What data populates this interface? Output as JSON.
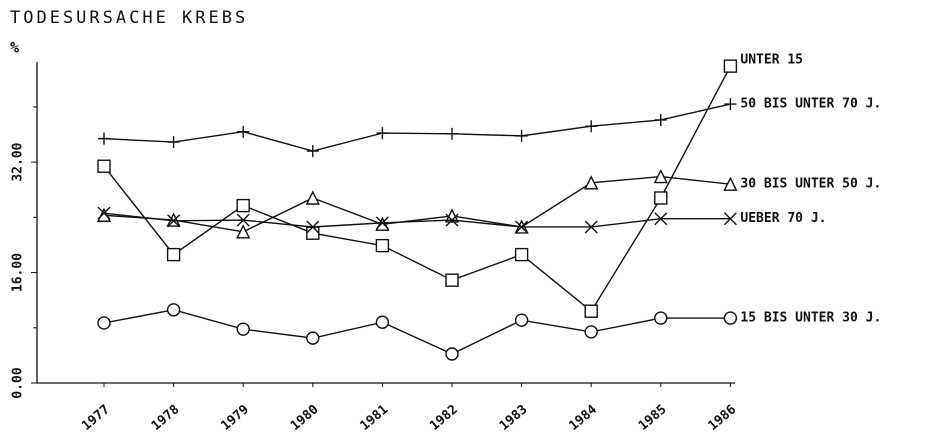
{
  "chart_data": {
    "type": "line",
    "title": "TODESURSACHE KREBS",
    "y_label": "%",
    "categories": [
      "1977",
      "1978",
      "1979",
      "1980",
      "1981",
      "1982",
      "1983",
      "1984",
      "1985",
      "1986"
    ],
    "ylim": [
      0,
      46.5
    ],
    "yticks": [
      {
        "value": 0,
        "label": "0.00"
      },
      {
        "value": 16,
        "label": "16.00"
      },
      {
        "value": 32,
        "label": "32.00"
      }
    ],
    "yticks_minor": [
      8,
      24,
      40
    ],
    "series": [
      {
        "name": "UNTER 15",
        "marker": "square",
        "color": "#111",
        "values": [
          31.4,
          18.6,
          25.7,
          21.7,
          19.9,
          14.9,
          18.6,
          10.4,
          26.8,
          45.9
        ]
      },
      {
        "name": "50 BIS UNTER 70 J.",
        "marker": "plus",
        "color": "#111",
        "values": [
          35.4,
          34.9,
          36.4,
          33.6,
          36.2,
          36.1,
          35.8,
          37.2,
          38.1,
          40.4
        ]
      },
      {
        "name": "30 BIS UNTER 50 J.",
        "marker": "triangle",
        "color": "#111",
        "values": [
          24.3,
          23.6,
          21.9,
          26.8,
          23.0,
          24.2,
          22.6,
          29.0,
          29.9,
          28.8
        ]
      },
      {
        "name": "UEBER 70 J.",
        "marker": "x",
        "color": "#111",
        "values": [
          24.6,
          23.5,
          23.6,
          22.6,
          23.2,
          23.6,
          22.6,
          22.6,
          23.8,
          23.8
        ]
      },
      {
        "name": "15 BIS UNTER 30 J.",
        "marker": "circle",
        "color": "#111",
        "values": [
          8.7,
          10.6,
          7.8,
          6.5,
          8.8,
          4.2,
          9.1,
          7.4,
          9.4,
          9.4
        ]
      }
    ]
  }
}
